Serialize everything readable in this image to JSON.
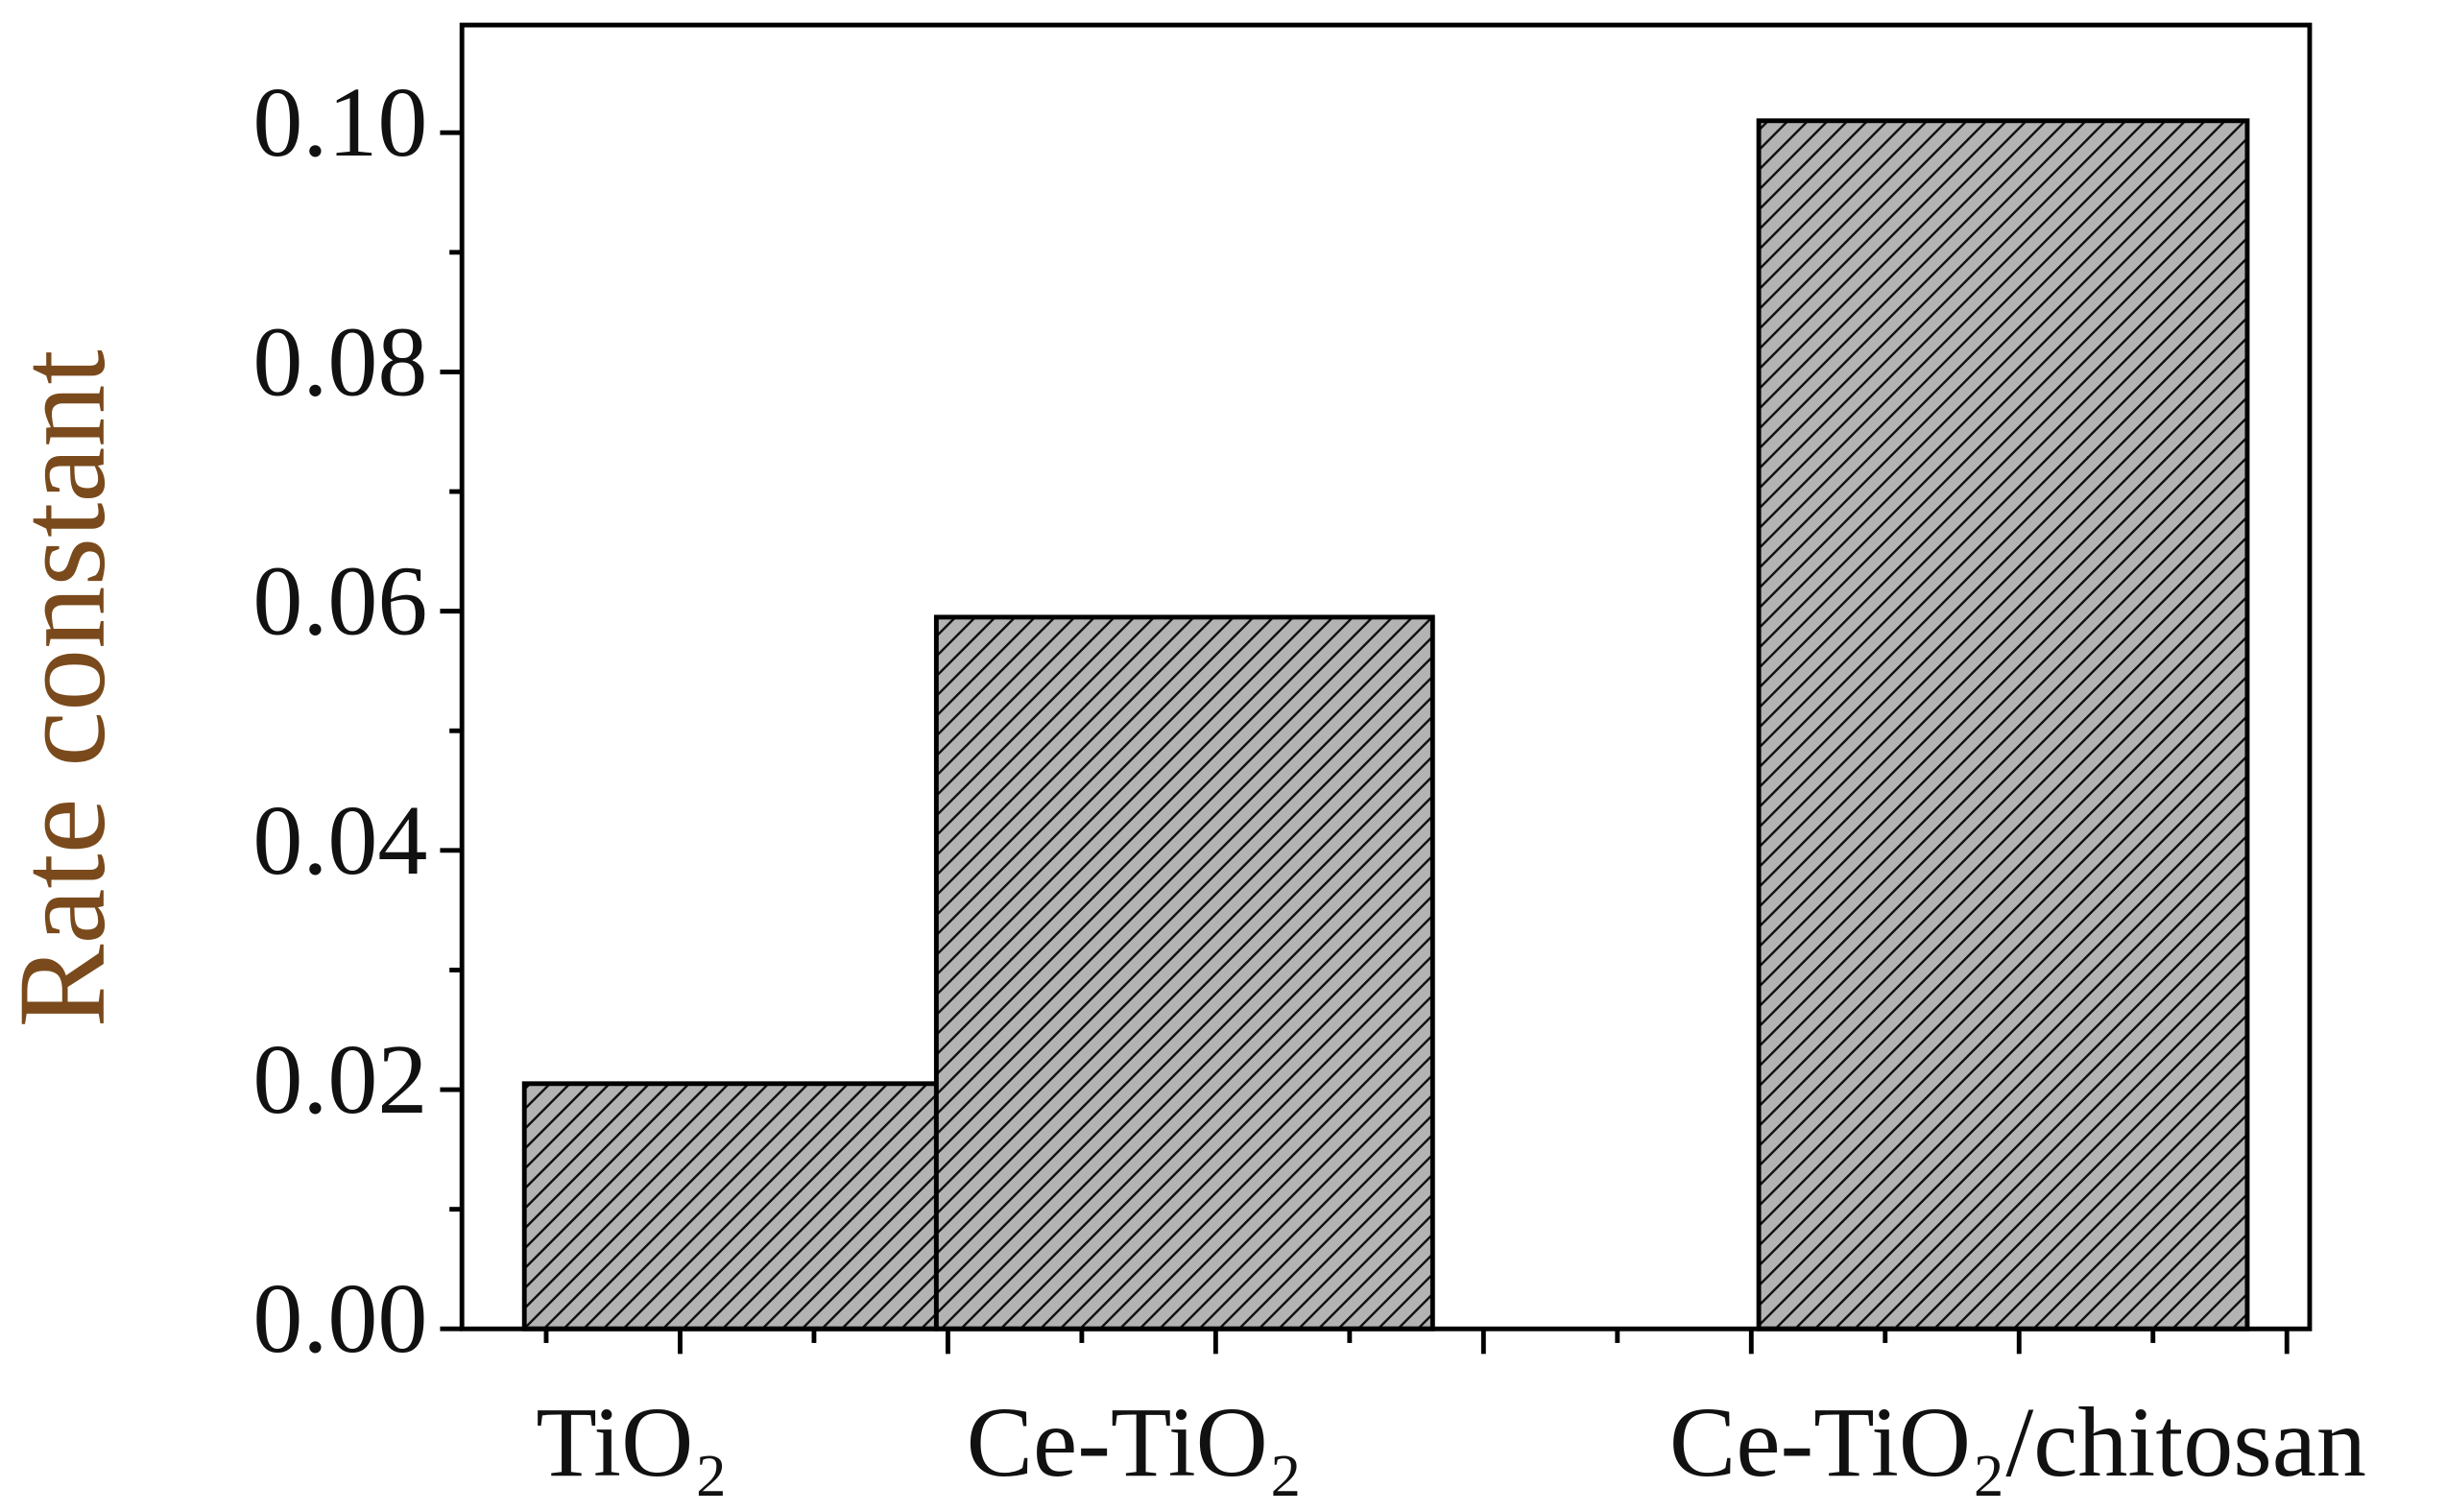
{
  "chart_data": {
    "type": "bar",
    "y_label": "Rate constant",
    "categories": [
      "TiO₂",
      "Ce-TiO₂",
      "Ce-TiO₂/chitosan"
    ],
    "values": [
      0.0205,
      0.0595,
      0.101
    ],
    "color": "#b3b3b3",
    "ylim": [
      0,
      0.109
    ],
    "yticks": [
      {
        "value": 0,
        "label": "0.00"
      },
      {
        "value": 0.02,
        "label": "0.02"
      },
      {
        "value": 0.04,
        "label": "0.04"
      },
      {
        "value": 0.06,
        "label": "0.06"
      },
      {
        "value": 0.08,
        "label": "0.08"
      },
      {
        "value": 0.1,
        "label": "0.10"
      }
    ]
  }
}
